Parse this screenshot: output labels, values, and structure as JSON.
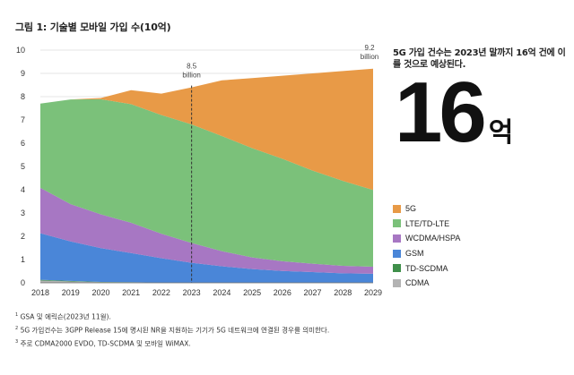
{
  "title": "그림 1: 기술별 모바일 가입 수(10억)",
  "headline": "5G 가입 건수는 2023년 말까지 16억 건에 이를 것으로 예상된다.",
  "big_number": "16",
  "big_unit": "억",
  "annotations": [
    {
      "x": "2023",
      "line1": "8.5",
      "line2": "billion"
    },
    {
      "x": "2029",
      "line1": "9.2",
      "line2": "billion"
    }
  ],
  "notes": [
    {
      "mark": "1",
      "text": "GSA 및 에릭슨(2023년 11월)."
    },
    {
      "mark": "2",
      "text": "5G 가입건수는 3GPP Release 15에 명시된 NR을 지원하는 기기가 5G 네트워크에 연결된 경우를 의미한다."
    },
    {
      "mark": "3",
      "text": "주로 CDMA2000 EVDO, TD-SCDMA 및 모바일 WiMAX."
    }
  ],
  "chart_data": {
    "type": "area",
    "stacked": true,
    "x": [
      "2018",
      "2019",
      "2020",
      "2021",
      "2022",
      "2023",
      "2024",
      "2025",
      "2026",
      "2027",
      "2028",
      "2029"
    ],
    "ylim": [
      0,
      10
    ],
    "yticks": [
      0,
      1,
      2,
      3,
      4,
      5,
      6,
      7,
      8,
      9,
      10
    ],
    "grid": true,
    "legend_position": "right",
    "series": [
      {
        "name": "CDMA",
        "color": "#b3b3b3",
        "values": [
          0.1,
          0.06,
          0.03,
          0.02,
          0.01,
          0.01,
          0.01,
          0.01,
          0.01,
          0.01,
          0.01,
          0.01
        ]
      },
      {
        "name": "TD-SCDMA",
        "color": "#3f8f4a",
        "values": [
          0.03,
          0.02,
          0.01,
          0.01,
          0.0,
          0.0,
          0.0,
          0.0,
          0.0,
          0.0,
          0.0,
          0.0
        ]
      },
      {
        "name": "GSM",
        "color": "#4a86d8",
        "values": [
          2.0,
          1.7,
          1.45,
          1.25,
          1.05,
          0.85,
          0.7,
          0.58,
          0.5,
          0.45,
          0.4,
          0.38
        ]
      },
      {
        "name": "WCDMA/HSPA",
        "color": "#a777c3",
        "values": [
          1.95,
          1.6,
          1.45,
          1.3,
          1.05,
          0.85,
          0.65,
          0.5,
          0.42,
          0.36,
          0.32,
          0.3
        ]
      },
      {
        "name": "LTE/TD-LTE",
        "color": "#7bc17a",
        "values": [
          3.62,
          4.5,
          4.95,
          5.1,
          5.1,
          5.1,
          4.95,
          4.7,
          4.4,
          4.0,
          3.65,
          3.3
        ]
      },
      {
        "name": "5G",
        "color": "#e89a47",
        "values": [
          0.0,
          0.0,
          0.05,
          0.6,
          0.92,
          1.59,
          2.39,
          3.01,
          3.57,
          4.18,
          4.72,
          5.21
        ]
      }
    ]
  }
}
